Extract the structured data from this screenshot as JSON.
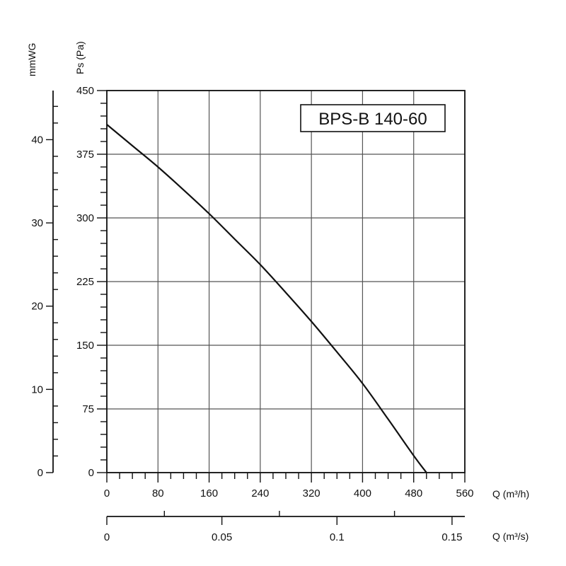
{
  "chart_data": {
    "type": "line",
    "title": "BPS-B 140-60",
    "x_axis_primary": {
      "label": "Q (m³/h)",
      "range": [
        0,
        560
      ],
      "ticks": [
        0,
        80,
        160,
        240,
        320,
        400,
        480,
        560
      ],
      "tick_labels": [
        "0",
        "80",
        "160",
        "240",
        "320",
        "400",
        "480",
        "560"
      ]
    },
    "x_axis_secondary": {
      "label": "Q (m³/s)",
      "range": [
        0,
        0.15556
      ],
      "ticks": [
        0,
        0.05,
        0.1,
        0.15
      ],
      "tick_labels": [
        "0",
        "0.05",
        "0.1",
        "0.15"
      ]
    },
    "y_axis_primary": {
      "label": "Ps (Pa)",
      "range": [
        0,
        450
      ],
      "ticks": [
        0,
        75,
        150,
        225,
        300,
        375,
        450
      ],
      "tick_labels": [
        "0",
        "75",
        "150",
        "225",
        "300",
        "375",
        "450"
      ]
    },
    "y_axis_secondary": {
      "label": "mmWG",
      "range": [
        0,
        45.9
      ],
      "ticks": [
        0,
        10,
        20,
        30,
        40
      ],
      "tick_labels": [
        "0",
        "10",
        "20",
        "30",
        "40"
      ]
    },
    "grid": true,
    "series": [
      {
        "x": [
          0,
          40,
          80,
          120,
          160,
          200,
          240,
          280,
          320,
          360,
          400,
          440,
          480,
          500
        ],
        "y": [
          410,
          385,
          360,
          333,
          305,
          275,
          245,
          212,
          178,
          142,
          105,
          63,
          20,
          0
        ]
      }
    ]
  }
}
